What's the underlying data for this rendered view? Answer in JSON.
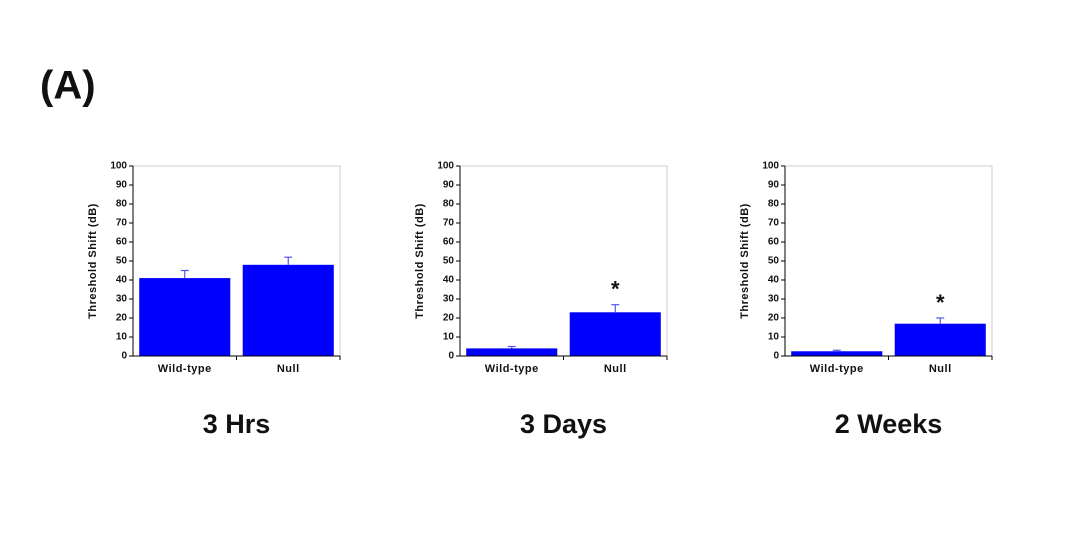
{
  "panel_label": "(A)",
  "chart_data": [
    {
      "type": "bar",
      "title": "3 Hrs",
      "y_label": "Threshold Shift (dB)",
      "categories": [
        "Wild-type",
        "Null"
      ],
      "values": [
        41,
        48
      ],
      "errors": [
        4,
        4
      ],
      "color": "#0000ff",
      "ylim": [
        0,
        100
      ],
      "yticks": [
        0,
        10,
        20,
        30,
        40,
        50,
        60,
        70,
        80,
        90,
        100
      ],
      "annotations": []
    },
    {
      "type": "bar",
      "title": "3 Days",
      "y_label": "Threshold Shift (dB)",
      "categories": [
        "Wild-type",
        "Null"
      ],
      "values": [
        4,
        23
      ],
      "errors": [
        1,
        4
      ],
      "color": "#0000ff",
      "ylim": [
        0,
        100
      ],
      "yticks": [
        0,
        10,
        20,
        30,
        40,
        50,
        60,
        70,
        80,
        90,
        100
      ],
      "annotations": [
        {
          "category": "Null",
          "text": "*"
        }
      ]
    },
    {
      "type": "bar",
      "title": "2 Weeks",
      "y_label": "Threshold Shift (dB)",
      "categories": [
        "Wild-type",
        "Null"
      ],
      "values": [
        2.5,
        17
      ],
      "errors": [
        0.5,
        3
      ],
      "color": "#0000ff",
      "ylim": [
        0,
        100
      ],
      "yticks": [
        0,
        10,
        20,
        30,
        40,
        50,
        60,
        70,
        80,
        90,
        100
      ],
      "annotations": [
        {
          "category": "Null",
          "text": "*"
        }
      ]
    }
  ]
}
